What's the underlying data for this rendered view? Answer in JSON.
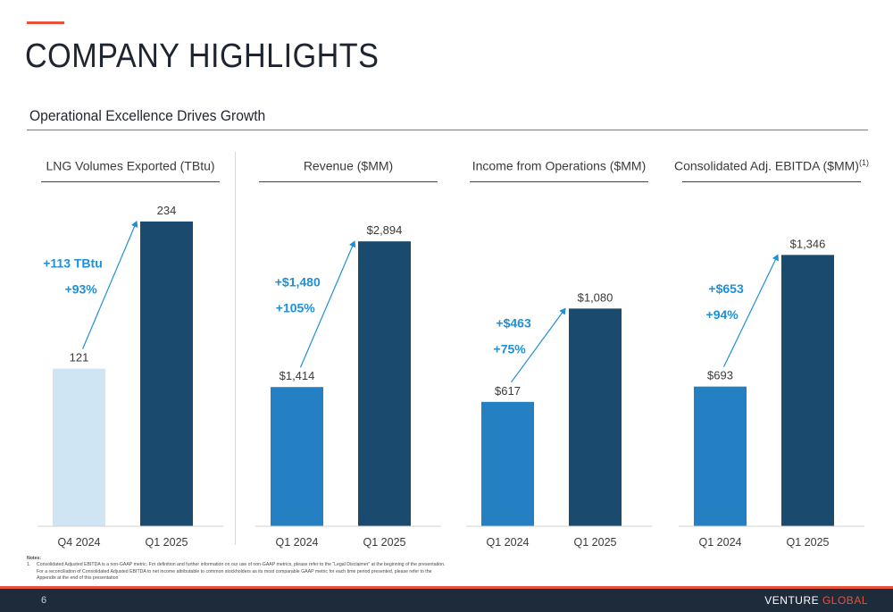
{
  "header": {
    "title": "COMPANY HIGHLIGHTS",
    "subtitle": "Operational Excellence Drives Growth"
  },
  "colors": {
    "accent": "#e8523a",
    "q4_2024_bar": "#cfe5f4",
    "q1_2024_bar": "#2480c2",
    "q1_2025_bar": "#1a4a6e",
    "change_text": "#1f8fd6",
    "footer_bg": "#1e2b3b"
  },
  "chart_data": [
    {
      "type": "bar",
      "title": "LNG Volumes Exported (TBtu)",
      "title_sup": "",
      "categories": [
        "Q4 2024",
        "Q1 2025"
      ],
      "values": [
        121,
        234
      ],
      "value_labels": [
        "121",
        "234"
      ],
      "change_labels": [
        "+113 TBtu",
        "+93%"
      ],
      "ylim": [
        0,
        260
      ]
    },
    {
      "type": "bar",
      "title": "Revenue ($MM)",
      "title_sup": "",
      "categories": [
        "Q1 2024",
        "Q1 2025"
      ],
      "values": [
        1414,
        2894
      ],
      "value_labels": [
        "$1,414",
        "$2,894"
      ],
      "change_labels": [
        "+$1,480",
        "+105%"
      ],
      "ylim": [
        0,
        3440
      ]
    },
    {
      "type": "bar",
      "title": "Income from Operations ($MM)",
      "title_sup": "",
      "categories": [
        "Q1 2024",
        "Q1 2025"
      ],
      "values": [
        617,
        1080
      ],
      "value_labels": [
        "$617",
        "$1,080"
      ],
      "change_labels": [
        "+$463",
        "+75%"
      ],
      "ylim": [
        0,
        1680
      ]
    },
    {
      "type": "bar",
      "title": "Consolidated Adj. EBITDA ($MM)",
      "title_sup": "(1)",
      "categories": [
        "Q1 2024",
        "Q1 2025"
      ],
      "values": [
        693,
        1346
      ],
      "value_labels": [
        "$693",
        "$1,346"
      ],
      "change_labels": [
        "+$653",
        "+94%"
      ],
      "ylim": [
        0,
        1680
      ]
    }
  ],
  "notes": {
    "heading": "Notes:",
    "items": [
      {
        "num": "1.",
        "text": "Consolidated Adjusted EBITDA is a non-GAAP metric. For definition and further information on our use of non-GAAP metrics, please refer to the “Legal Disclaimer” at the beginning of the presentation. For a reconciliation of Consolidated Adjusted EBITDA to net income attributable to common stockholders as its most comparable GAAP metric for each time period presented, please refer to the Appendix at the end of this presentation"
      }
    ]
  },
  "footer": {
    "page_number": "6",
    "brand_first": "VENTURE ",
    "brand_second": "GLOBAL"
  }
}
